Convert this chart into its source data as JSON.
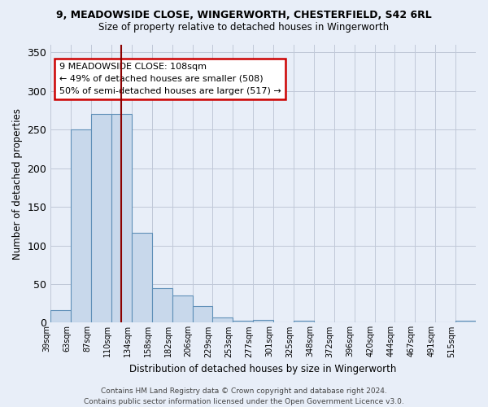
{
  "title1": "9, MEADOWSIDE CLOSE, WINGERWORTH, CHESTERFIELD, S42 6RL",
  "title2": "Size of property relative to detached houses in Wingerworth",
  "xlabel": "Distribution of detached houses by size in Wingerworth",
  "ylabel": "Number of detached properties",
  "bar_labels": [
    "39sqm",
    "63sqm",
    "87sqm",
    "110sqm",
    "134sqm",
    "158sqm",
    "182sqm",
    "206sqm",
    "229sqm",
    "253sqm",
    "277sqm",
    "301sqm",
    "325sqm",
    "348sqm",
    "372sqm",
    "396sqm",
    "420sqm",
    "444sqm",
    "467sqm",
    "491sqm",
    "515sqm"
  ],
  "bar_heights": [
    16,
    250,
    270,
    270,
    116,
    45,
    35,
    22,
    7,
    3,
    4,
    0,
    3,
    0,
    0,
    0,
    0,
    0,
    0,
    0,
    3
  ],
  "bar_color": "#c8d8eb",
  "bar_edge_color": "#6090b8",
  "vline_x_label_idx": 3,
  "vline_color": "#8b0000",
  "annotation_text": "9 MEADOWSIDE CLOSE: 108sqm\n← 49% of detached houses are smaller (508)\n50% of semi-detached houses are larger (517) →",
  "annotation_box_color": "white",
  "annotation_box_edge": "#cc0000",
  "ylim": [
    0,
    360
  ],
  "yticks": [
    0,
    50,
    100,
    150,
    200,
    250,
    300,
    350
  ],
  "footer": "Contains HM Land Registry data © Crown copyright and database right 2024.\nContains public sector information licensed under the Open Government Licence v3.0.",
  "bg_color": "#e8eef8",
  "plot_bg_color": "#e8eef8",
  "grid_color": "#c0c8d8"
}
